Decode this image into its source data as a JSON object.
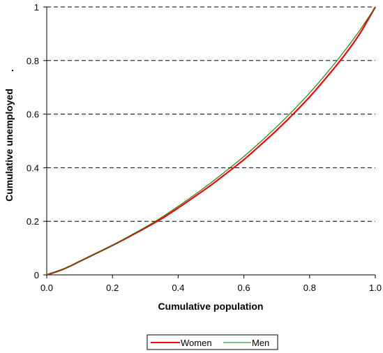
{
  "chart_data": {
    "type": "line",
    "title": "",
    "xlabel": "Cumulative population",
    "ylabel": "Cumulative unemployed",
    "ylabel_suffix": ".",
    "xlim": [
      0,
      1
    ],
    "ylim": [
      0,
      1
    ],
    "x_ticks": [
      "0.0",
      "0.2",
      "0.4",
      "0.6",
      "0.8",
      "1.0"
    ],
    "y_ticks": [
      "0",
      "0.2",
      "0.4",
      "0.6",
      "0.8",
      "1"
    ],
    "grid": "horizontal dashed",
    "legend_position": "bottom",
    "x": [
      0,
      0.05,
      0.1,
      0.15,
      0.2,
      0.25,
      0.3,
      0.35,
      0.4,
      0.45,
      0.5,
      0.55,
      0.6,
      0.65,
      0.7,
      0.75,
      0.8,
      0.85,
      0.9,
      0.95,
      1.0
    ],
    "series": [
      {
        "name": "Women",
        "color": "#ff0000",
        "values": [
          0,
          0.021,
          0.05,
          0.08,
          0.11,
          0.142,
          0.175,
          0.21,
          0.25,
          0.292,
          0.335,
          0.382,
          0.43,
          0.484,
          0.54,
          0.6,
          0.664,
          0.735,
          0.81,
          0.895,
          1.0
        ]
      },
      {
        "name": "Men",
        "color": "#008000",
        "values": [
          0,
          0.022,
          0.05,
          0.08,
          0.11,
          0.144,
          0.178,
          0.215,
          0.256,
          0.299,
          0.344,
          0.392,
          0.442,
          0.496,
          0.553,
          0.614,
          0.679,
          0.75,
          0.826,
          0.908,
          1.0
        ]
      }
    ]
  }
}
